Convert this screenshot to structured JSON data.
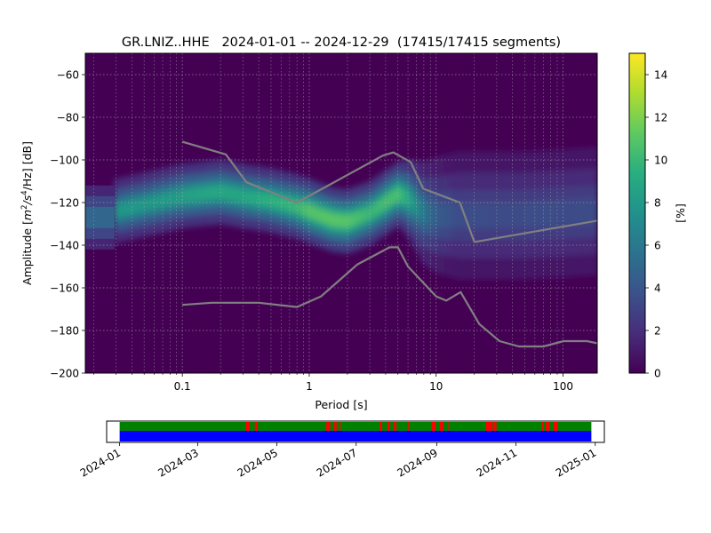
{
  "chart_data": [
    {
      "type": "heatmap",
      "title": "GR.LNIZ..HHE   2024-01-01 -- 2024-12-29  (17415/17415 segments)",
      "xlabel": "Period [s]",
      "ylabel": "Amplitude [m2/s4/Hz] [dB]",
      "ylabel_parts": {
        "pre": "Amplitude [",
        "m": "m",
        "exp1": "2",
        "mid": "/s",
        "exp2": "4",
        "post": "/Hz] [dB]"
      },
      "x_scale": "log",
      "xlim": [
        0.0172,
        186
      ],
      "ylim": [
        -200,
        -50
      ],
      "x_ticks": [
        {
          "value": 0.1,
          "label": "0.1"
        },
        {
          "value": 1,
          "label": "1"
        },
        {
          "value": 10,
          "label": "10"
        },
        {
          "value": 100,
          "label": "100"
        }
      ],
      "y_ticks": [
        {
          "value": -60,
          "label": "−60"
        },
        {
          "value": -80,
          "label": "−80"
        },
        {
          "value": -100,
          "label": "−100"
        },
        {
          "value": -120,
          "label": "−120"
        },
        {
          "value": -140,
          "label": "−140"
        },
        {
          "value": -160,
          "label": "−160"
        },
        {
          "value": -180,
          "label": "−180"
        },
        {
          "value": -200,
          "label": "−200"
        }
      ],
      "grid": true,
      "colormap": "viridis",
      "colorbar": {
        "label": "[%]",
        "min": 0,
        "max": 15,
        "ticks": [
          {
            "value": 0,
            "label": "0"
          },
          {
            "value": 2,
            "label": "2"
          },
          {
            "value": 4,
            "label": "4"
          },
          {
            "value": 6,
            "label": "6"
          },
          {
            "value": 8,
            "label": "8"
          },
          {
            "value": 10,
            "label": "10"
          },
          {
            "value": 12,
            "label": "12"
          },
          {
            "value": 14,
            "label": "14"
          }
        ]
      },
      "density_ridge": {
        "period": [
          0.02,
          0.03,
          0.05,
          0.1,
          0.2,
          0.3,
          0.5,
          0.8,
          1.0,
          1.5,
          2.0,
          3.0,
          4.0,
          5.0,
          6.0,
          8.0,
          10,
          15,
          20,
          30,
          50,
          100,
          186
        ],
        "mode_db": [
          -126,
          -124,
          -121,
          -117,
          -115,
          -117,
          -119,
          -122,
          -124,
          -128,
          -129,
          -125,
          -120,
          -116,
          -118,
          -125,
          -126,
          -126,
          -126,
          -126,
          -126,
          -125,
          -124
        ],
        "peak_percent": [
          7,
          8,
          8,
          8.5,
          9,
          9,
          9.5,
          10,
          11,
          11,
          11,
          10,
          10.5,
          10.5,
          9,
          6,
          4.5,
          3.5,
          3.5,
          3.5,
          3.5,
          3.5,
          3.5
        ],
        "width_db": [
          5,
          5,
          5,
          5,
          5,
          5,
          5,
          5,
          5,
          5,
          5,
          5,
          5,
          5,
          6,
          8,
          9,
          10,
          10,
          10,
          10,
          10,
          10
        ]
      },
      "noise_models": [
        {
          "period": [
            0.1,
            0.17,
            0.22,
            0.3,
            0.4,
            0.8,
            1.24,
            2.4,
            4.3,
            5.0,
            6.0,
            10.0,
            12.0,
            15.6,
            21.9,
            31.6,
            45.0,
            70.0,
            101.0,
            154.0,
            186.0
          ],
          "db": [
            -168,
            -167,
            -167,
            -167,
            -167,
            -169,
            -164,
            -149,
            -141,
            -141,
            -150,
            -164,
            -166,
            -162,
            -177,
            -185,
            -187.5,
            -187.5,
            -185,
            -185,
            -186
          ]
        },
        {
          "period": [
            0.1,
            0.22,
            0.32,
            0.8,
            3.8,
            4.6,
            6.3,
            7.9,
            15.4,
            20.0,
            186.0
          ],
          "db": [
            -91.5,
            -97.4,
            -110.5,
            -120,
            -98,
            -96.5,
            -101,
            -113.5,
            -120,
            -138.5,
            -128.5
          ]
        }
      ]
    },
    {
      "type": "bar",
      "title": "",
      "x_type": "date",
      "xlim": [
        "2023-12-22",
        "2025-01-08"
      ],
      "x_ticks": [
        {
          "value": "2024-01-01",
          "label": "2024-01"
        },
        {
          "value": "2024-03-01",
          "label": "2024-03"
        },
        {
          "value": "2024-05-01",
          "label": "2024-05"
        },
        {
          "value": "2024-07-01",
          "label": "2024-07"
        },
        {
          "value": "2024-09-01",
          "label": "2024-09"
        },
        {
          "value": "2024-11-01",
          "label": "2024-11"
        },
        {
          "value": "2025-01-01",
          "label": "2025-01"
        }
      ],
      "coverage": {
        "start": "2024-01-01",
        "end": "2024-12-29",
        "data_color": "#0000ff",
        "used_color": "#008000",
        "gap_color": "#ff0000",
        "gaps": [
          [
            "2024-04-07",
            "2024-04-10"
          ],
          [
            "2024-04-14",
            "2024-04-16"
          ],
          [
            "2024-06-08",
            "2024-06-11"
          ],
          [
            "2024-06-14",
            "2024-06-16"
          ],
          [
            "2024-06-18",
            "2024-06-19"
          ],
          [
            "2024-07-19",
            "2024-07-21"
          ],
          [
            "2024-07-25",
            "2024-07-27"
          ],
          [
            "2024-07-30",
            "2024-08-01"
          ],
          [
            "2024-08-10",
            "2024-08-11"
          ],
          [
            "2024-08-28",
            "2024-08-31"
          ],
          [
            "2024-09-03",
            "2024-09-06"
          ],
          [
            "2024-09-10",
            "2024-09-11"
          ],
          [
            "2024-10-09",
            "2024-10-14"
          ],
          [
            "2024-10-15",
            "2024-10-17"
          ],
          [
            "2024-11-21",
            "2024-11-22"
          ],
          [
            "2024-11-24",
            "2024-11-27"
          ],
          [
            "2024-11-30",
            "2024-12-03"
          ]
        ]
      }
    }
  ]
}
